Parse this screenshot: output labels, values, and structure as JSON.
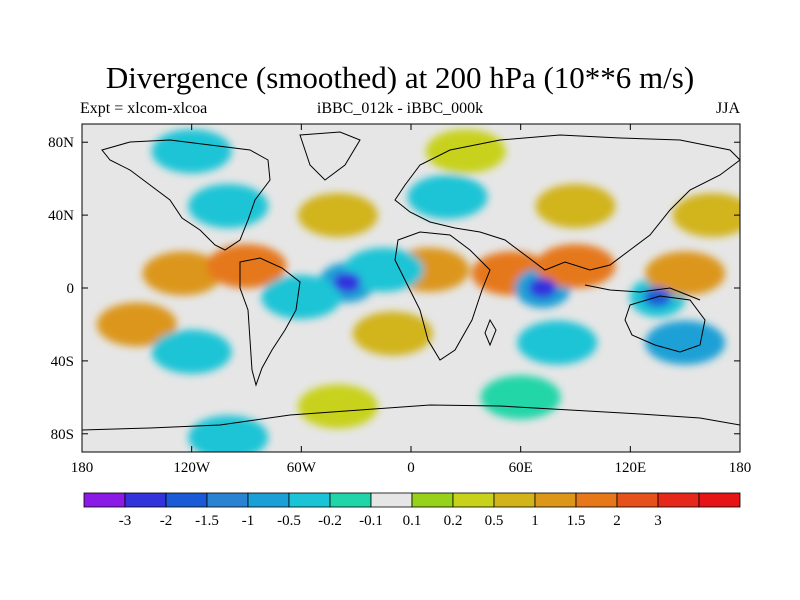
{
  "title": "Divergence (smoothed) at 200 hPa (10**6 m/s)",
  "subtitle": {
    "left": "Expt = xlcom-xlcoa",
    "center": "iBBC_012k - iBBC_000k",
    "right": "JJA"
  },
  "map": {
    "projection": "cylindrical-equidistant",
    "lon_range": [
      -180,
      180
    ],
    "lat_range": [
      -90,
      90
    ],
    "lon_ticks": [
      {
        "value": -180,
        "label": "180"
      },
      {
        "value": -120,
        "label": "120W"
      },
      {
        "value": -60,
        "label": "60W"
      },
      {
        "value": 0,
        "label": "0"
      },
      {
        "value": 60,
        "label": "60E"
      },
      {
        "value": 120,
        "label": "120E"
      },
      {
        "value": 180,
        "label": "180"
      }
    ],
    "lat_ticks": [
      {
        "value": 80,
        "label": "80N"
      },
      {
        "value": 40,
        "label": "40N"
      },
      {
        "value": 0,
        "label": "0"
      },
      {
        "value": -40,
        "label": "40S"
      },
      {
        "value": -80,
        "label": "80S"
      }
    ],
    "background_color": "#e6e6e6",
    "fields": [
      {
        "name": "tropical-divergence-band-east-pacific",
        "lon": -125,
        "lat": 8,
        "value": 1.0
      },
      {
        "name": "central-america-divergence",
        "lon": -90,
        "lat": 12,
        "value": 1.5
      },
      {
        "name": "atlantic-convergence-core",
        "lon": -35,
        "lat": 3,
        "value": -3.0
      },
      {
        "name": "atlantic-convergence-ring",
        "lon": -35,
        "lat": 3,
        "value": -1.0
      },
      {
        "name": "south-america-convergence",
        "lon": -60,
        "lat": -5,
        "value": -0.5
      },
      {
        "name": "africa-divergence",
        "lon": 10,
        "lat": 10,
        "value": 1.0
      },
      {
        "name": "west-africa-convergence",
        "lon": -15,
        "lat": 10,
        "value": -0.5
      },
      {
        "name": "arabian-sea-divergence",
        "lon": 55,
        "lat": 8,
        "value": 1.5
      },
      {
        "name": "indian-ocean-convergence-core",
        "lon": 72,
        "lat": 0,
        "value": -3.0
      },
      {
        "name": "indian-ocean-convergence-ring",
        "lon": 72,
        "lat": 0,
        "value": -1.0
      },
      {
        "name": "bay-of-bengal-divergence",
        "lon": 90,
        "lat": 12,
        "value": 1.5
      },
      {
        "name": "maritime-continent-convergence-core",
        "lon": 135,
        "lat": -5,
        "value": -2.0
      },
      {
        "name": "maritime-continent-convergence-ring",
        "lon": 135,
        "lat": -5,
        "value": -0.5
      },
      {
        "name": "west-pacific-divergence",
        "lon": 150,
        "lat": 8,
        "value": 1.0
      },
      {
        "name": "north-pacific-divergence",
        "lon": 165,
        "lat": 40,
        "value": 0.5
      },
      {
        "name": "north-america-convergence",
        "lon": -100,
        "lat": 45,
        "value": -0.5
      },
      {
        "name": "north-atlantic-divergence",
        "lon": -40,
        "lat": 40,
        "value": 0.5
      },
      {
        "name": "europe-convergence",
        "lon": 20,
        "lat": 50,
        "value": -0.5
      },
      {
        "name": "asia-divergence",
        "lon": 90,
        "lat": 45,
        "value": 0.5
      },
      {
        "name": "south-pacific-divergence",
        "lon": -150,
        "lat": -20,
        "value": 1.0
      },
      {
        "name": "south-pacific-convergence",
        "lon": -120,
        "lat": -35,
        "value": -0.5
      },
      {
        "name": "south-atlantic-divergence",
        "lon": -10,
        "lat": -25,
        "value": 0.5
      },
      {
        "name": "south-indian-convergence",
        "lon": 80,
        "lat": -30,
        "value": -0.5
      },
      {
        "name": "australia-convergence",
        "lon": 150,
        "lat": -30,
        "value": -1.0
      },
      {
        "name": "southern-ocean-divergence",
        "lon": -40,
        "lat": -65,
        "value": 0.2
      },
      {
        "name": "southern-ocean-convergence",
        "lon": 60,
        "lat": -60,
        "value": -0.2
      },
      {
        "name": "antarctic-convergence",
        "lon": -100,
        "lat": -82,
        "value": -0.5
      },
      {
        "name": "arctic-divergence",
        "lon": 30,
        "lat": 75,
        "value": 0.2
      },
      {
        "name": "arctic-convergence",
        "lon": -120,
        "lat": 75,
        "value": -0.5
      }
    ]
  },
  "colorbar": {
    "colors": [
      "#8c1ae6",
      "#3333dd",
      "#1a5ad6",
      "#2a82d2",
      "#1aa0d6",
      "#1ac4d6",
      "#20d6a8",
      "#e6e6e6",
      "#96d21a",
      "#c8d21a",
      "#d2b41a",
      "#dc961a",
      "#e6781a",
      "#e6501a",
      "#e6281a",
      "#e61414"
    ],
    "labels": [
      "-3",
      "-2",
      "-1.5",
      "-1",
      "-0.5",
      "-0.2",
      "-0.1",
      "0.1",
      "0.2",
      "0.5",
      "1",
      "1.5",
      "2",
      "3"
    ],
    "levels": [
      -3,
      -2,
      -1.5,
      -1,
      -0.5,
      -0.2,
      -0.1,
      0.1,
      0.2,
      0.5,
      1,
      1.5,
      2,
      3
    ]
  }
}
